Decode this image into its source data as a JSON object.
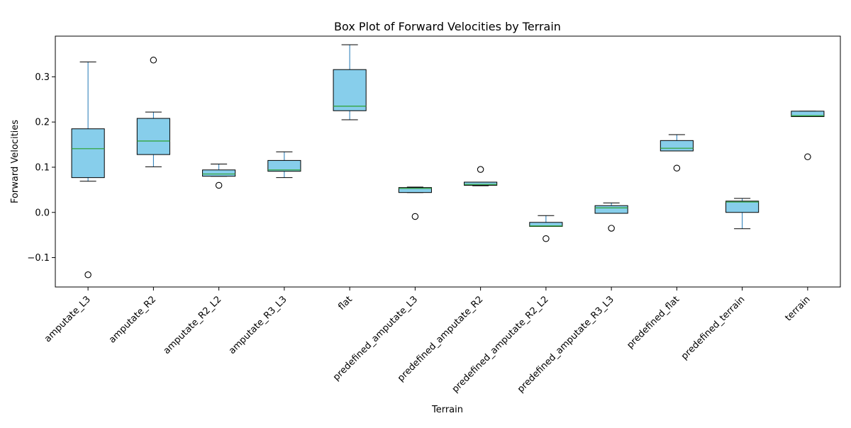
{
  "chart_data": {
    "type": "box",
    "title": "Box Plot of Forward Velocities by Terrain",
    "xlabel": "Terrain",
    "ylabel": "Forward Velocities",
    "ylim": [
      -0.165,
      0.39
    ],
    "yticks": [
      {
        "value": -0.1,
        "label": "−0.1"
      },
      {
        "value": 0.0,
        "label": "0.0"
      },
      {
        "value": 0.1,
        "label": "0.1"
      },
      {
        "value": 0.2,
        "label": "0.2"
      },
      {
        "value": 0.3,
        "label": "0.3"
      }
    ],
    "grid": false,
    "colors": {
      "box_fill": "#87ceeb",
      "box_edge": "#000000",
      "whisker": "#1f77b4",
      "cap": "#000000",
      "median": "#2ca02c",
      "flier_edge": "#000000"
    },
    "categories": [
      "amputate_L3",
      "amputate_R2",
      "amputate_R2_L2",
      "amputate_R3_L3",
      "flat",
      "predefined_amputate_L3",
      "predefined_amputate_R2",
      "predefined_amputate_R2_L2",
      "predefined_amputate_R3_L3",
      "predefined_flat",
      "predefined_terrain",
      "terrain"
    ],
    "boxes": [
      {
        "whislo": 0.069,
        "q1": 0.077,
        "med": 0.141,
        "q3": 0.185,
        "whishi": 0.333,
        "fliers": [
          -0.138
        ]
      },
      {
        "whislo": 0.101,
        "q1": 0.128,
        "med": 0.158,
        "q3": 0.208,
        "whishi": 0.222,
        "fliers": [
          0.337
        ]
      },
      {
        "whislo": 0.08,
        "q1": 0.08,
        "med": 0.085,
        "q3": 0.094,
        "whishi": 0.107,
        "fliers": [
          0.06
        ]
      },
      {
        "whislo": 0.077,
        "q1": 0.091,
        "med": 0.094,
        "q3": 0.115,
        "whishi": 0.134,
        "fliers": []
      },
      {
        "whislo": 0.205,
        "q1": 0.225,
        "med": 0.235,
        "q3": 0.316,
        "whishi": 0.371,
        "fliers": []
      },
      {
        "whislo": 0.044,
        "q1": 0.044,
        "med": 0.053,
        "q3": 0.055,
        "whishi": 0.056,
        "fliers": [
          -0.009
        ]
      },
      {
        "whislo": 0.059,
        "q1": 0.06,
        "med": 0.062,
        "q3": 0.067,
        "whishi": 0.067,
        "fliers": [
          0.095
        ]
      },
      {
        "whislo": -0.031,
        "q1": -0.031,
        "med": -0.03,
        "q3": -0.022,
        "whishi": -0.007,
        "fliers": [
          -0.058
        ]
      },
      {
        "whislo": -0.002,
        "q1": -0.002,
        "med": 0.01,
        "q3": 0.015,
        "whishi": 0.021,
        "fliers": [
          -0.035
        ]
      },
      {
        "whislo": 0.136,
        "q1": 0.136,
        "med": 0.142,
        "q3": 0.159,
        "whishi": 0.172,
        "fliers": [
          0.098
        ]
      },
      {
        "whislo": -0.036,
        "q1": 0.0,
        "med": 0.023,
        "q3": 0.025,
        "whishi": 0.031,
        "fliers": []
      },
      {
        "whislo": 0.212,
        "q1": 0.212,
        "med": 0.214,
        "q3": 0.224,
        "whishi": 0.224,
        "fliers": [
          0.123
        ]
      }
    ]
  }
}
